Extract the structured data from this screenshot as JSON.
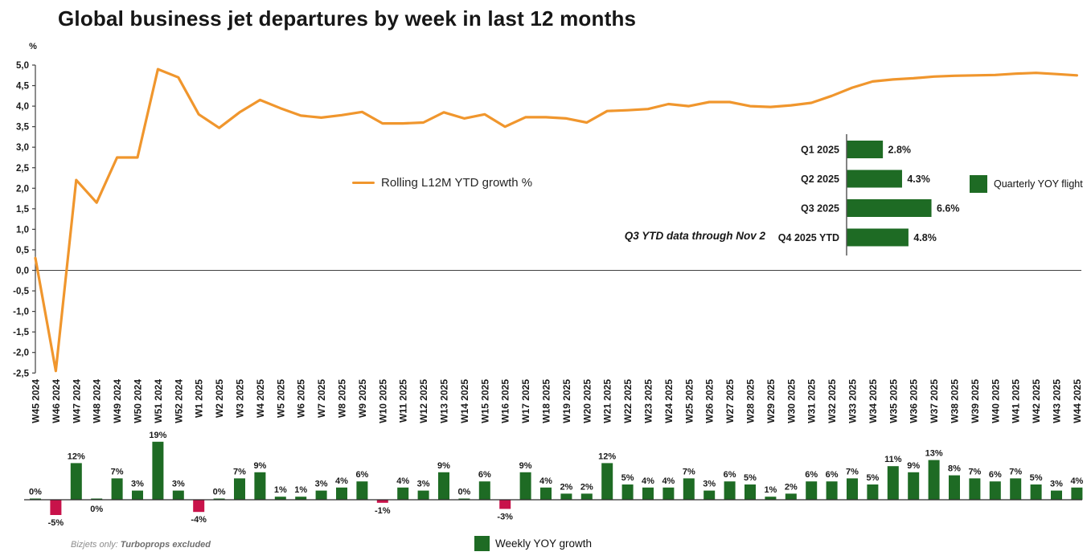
{
  "title": "Global business jet departures by week in last 12 months",
  "footer": {
    "prefix": "Bizjets only: ",
    "bold": "Turboprops excluded"
  },
  "colors": {
    "line_orange": "#F0962D",
    "bar_green": "#1E6B24",
    "bar_red": "#C8124A",
    "axis": "#404040",
    "text": "#1a1a1a"
  },
  "legends": {
    "line": "Rolling L12M YTD growth %",
    "weekly": "Weekly YOY growth",
    "quarterly": "Quarterly YOY flight"
  },
  "inset_note": "Q3 YTD data through Nov 2",
  "chart_data": [
    {
      "type": "line",
      "name": "rolling-l12m-ytd-growth",
      "legend": "Rolling L12M YTD growth %",
      "ylabel": "%",
      "ylim": [
        -2.5,
        5.0
      ],
      "ytick_step": 0.5,
      "decimal_separator": ",",
      "grid": false,
      "x": [
        "W45 2024",
        "W46 2024",
        "W47 2024",
        "W48 2024",
        "W49 2024",
        "W50 2024",
        "W51 2024",
        "W52 2024",
        "W1 2025",
        "W2 2025",
        "W3 2025",
        "W4 2025",
        "W5 2025",
        "W6 2025",
        "W7 2025",
        "W8 2025",
        "W9 2025",
        "W10 2025",
        "W11 2025",
        "W12 2025",
        "W13 2025",
        "W14 2025",
        "W15 2025",
        "W16 2025",
        "W17 2025",
        "W18 2025",
        "W19 2025",
        "W20 2025",
        "W21 2025",
        "W22 2025",
        "W23 2025",
        "W24 2025",
        "W25 2025",
        "W26 2025",
        "W27 2025",
        "W28 2025",
        "W29 2025",
        "W30 2025",
        "W31 2025",
        "W32 2025",
        "W33 2025",
        "W34 2025",
        "W35 2025",
        "W36 2025",
        "W37 2025",
        "W38 2025",
        "W39 2025",
        "W40 2025",
        "W41 2025",
        "W42 2025",
        "W43 2025",
        "W44 2025"
      ],
      "values": [
        0.3,
        -2.45,
        2.2,
        1.65,
        2.75,
        2.75,
        4.9,
        4.7,
        3.8,
        3.47,
        3.85,
        4.15,
        3.95,
        3.77,
        3.72,
        3.78,
        3.86,
        3.58,
        3.58,
        3.6,
        3.85,
        3.7,
        3.8,
        3.5,
        3.73,
        3.73,
        3.7,
        3.6,
        3.88,
        3.9,
        3.93,
        4.05,
        4.0,
        4.1,
        4.1,
        4.0,
        3.98,
        4.02,
        4.08,
        4.25,
        4.45,
        4.6,
        4.65,
        4.68,
        4.72,
        4.74,
        4.75,
        4.76,
        4.79,
        4.81,
        4.78,
        4.75
      ]
    },
    {
      "type": "bar",
      "name": "weekly-yoy-growth",
      "legend": "Weekly YOY growth",
      "categories": [
        "W45 2024",
        "W46 2024",
        "W47 2024",
        "W48 2024",
        "W49 2024",
        "W50 2024",
        "W51 2024",
        "W52 2024",
        "W1 2025",
        "W2 2025",
        "W3 2025",
        "W4 2025",
        "W5 2025",
        "W6 2025",
        "W7 2025",
        "W8 2025",
        "W9 2025",
        "W10 2025",
        "W11 2025",
        "W12 2025",
        "W13 2025",
        "W14 2025",
        "W15 2025",
        "W16 2025",
        "W17 2025",
        "W18 2025",
        "W19 2025",
        "W20 2025",
        "W21 2025",
        "W22 2025",
        "W23 2025",
        "W24 2025",
        "W25 2025",
        "W26 2025",
        "W27 2025",
        "W28 2025",
        "W29 2025",
        "W30 2025",
        "W31 2025",
        "W32 2025",
        "W33 2025",
        "W34 2025",
        "W35 2025",
        "W36 2025",
        "W37 2025",
        "W38 2025",
        "W39 2025",
        "W40 2025",
        "W41 2025",
        "W42 2025",
        "W43 2025",
        "W44 2025"
      ],
      "values": [
        0,
        -5,
        12,
        0,
        7,
        3,
        19,
        3,
        -4,
        0,
        7,
        9,
        1,
        1,
        3,
        4,
        6,
        -1,
        4,
        3,
        9,
        0,
        6,
        -3,
        9,
        4,
        2,
        2,
        12,
        5,
        4,
        4,
        7,
        3,
        6,
        5,
        1,
        2,
        6,
        6,
        7,
        5,
        11,
        9,
        13,
        8,
        7,
        6,
        7,
        5,
        3,
        4
      ],
      "labels": [
        "0%",
        "-5%",
        "12%",
        "0%",
        "7%",
        "3%",
        "19%",
        "3%",
        "-4%",
        "0%",
        "7%",
        "9%",
        "1%",
        "1%",
        "3%",
        "4%",
        "6%",
        "-1%",
        "4%",
        "3%",
        "9%",
        "0%",
        "6%",
        "-3%",
        "9%",
        "4%",
        "2%",
        "2%",
        "12%",
        "5%",
        "4%",
        "4%",
        "7%",
        "3%",
        "6%",
        "5%",
        "1%",
        "2%",
        "6%",
        "6%",
        "7%",
        "5%",
        "11%",
        "9%",
        "13%",
        "8%",
        "7%",
        "6%",
        "7%",
        "5%",
        "3%",
        "4%"
      ],
      "label_below_indices": [
        1,
        3,
        8,
        17,
        23
      ],
      "positive_color": "#1E6B24",
      "negative_color": "#C8124A"
    },
    {
      "type": "bar",
      "orientation": "horizontal",
      "name": "quarterly-yoy-flights",
      "legend": "Quarterly YOY flight",
      "note": "Q3 YTD data through Nov 2",
      "categories": [
        "Q1 2025",
        "Q2 2025",
        "Q3 2025",
        "Q4 2025 YTD"
      ],
      "values": [
        2.8,
        4.3,
        6.6,
        4.8
      ],
      "labels": [
        "2.8%",
        "4.3%",
        "6.6%",
        "4.8%"
      ],
      "bar_color": "#1E6B24"
    }
  ]
}
